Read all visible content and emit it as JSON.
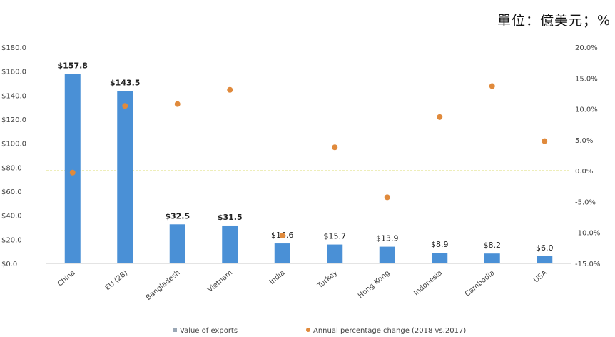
{
  "unit_note": "單位：億美元；%",
  "chart_data": {
    "type": "bar",
    "categories": [
      "China",
      "EU (28)",
      "Bangladesh",
      "Vietnam",
      "India",
      "Turkey",
      "Hong Kong",
      "Indonesia",
      "Cambodia",
      "USA"
    ],
    "series": [
      {
        "name": "Value of exports",
        "type": "bar",
        "axis": "left",
        "color": "#4a90d6",
        "values": [
          157.8,
          143.5,
          32.5,
          31.5,
          16.6,
          15.7,
          13.9,
          8.9,
          8.2,
          6.0
        ],
        "labels": [
          "$157.8",
          "$143.5",
          "$32.5",
          "$31.5",
          "$16.6",
          "$15.7",
          "$13.9",
          "$8.9",
          "$8.2",
          "$6.0"
        ]
      },
      {
        "name": "Annual percentage change (2018 vs.2017)",
        "type": "scatter",
        "axis": "right",
        "color": "#e08a3c",
        "values": [
          -0.3,
          10.5,
          10.8,
          13.1,
          -10.5,
          3.8,
          -4.3,
          8.7,
          13.7,
          4.8
        ]
      }
    ],
    "y_left": {
      "min": 0,
      "max": 180,
      "step": 20,
      "ticks": [
        "$0.0",
        "$20.0",
        "$40.0",
        "$60.0",
        "$80.0",
        "$100.0",
        "$120.0",
        "$140.0",
        "$160.0",
        "$180.0"
      ]
    },
    "y_right": {
      "min": -15,
      "max": 20,
      "step": 5,
      "ticks": [
        "-15.0%",
        "-10.0%",
        "-5.0%",
        "0.0%",
        "5.0%",
        "10.0%",
        "15.0%",
        "20.0%"
      ]
    },
    "zero_line_color": "#d4d44a",
    "grid": false,
    "legend_position": "bottom"
  }
}
